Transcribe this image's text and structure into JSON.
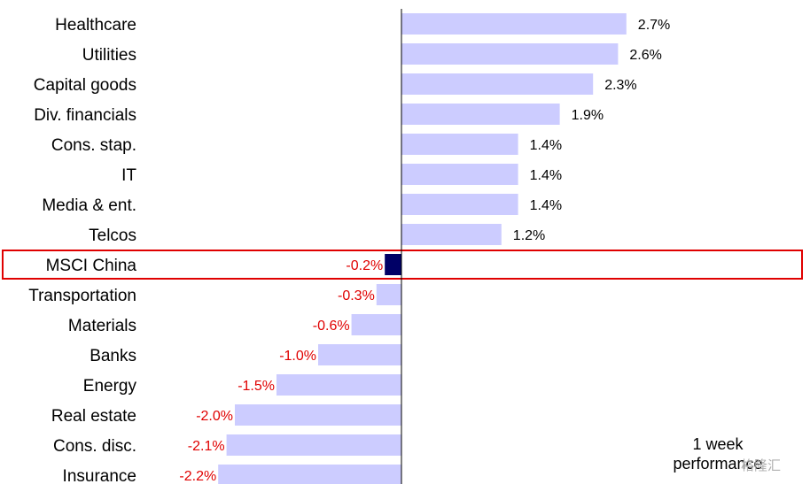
{
  "chart_data": {
    "type": "bar",
    "orientation": "horizontal",
    "categories": [
      "Healthcare",
      "Utilities",
      "Capital goods",
      "Div. financials",
      "Cons. stap.",
      "IT",
      "Media & ent.",
      "Telcos",
      "MSCI China",
      "Transportation",
      "Materials",
      "Banks",
      "Energy",
      "Real estate",
      "Cons. disc.",
      "Insurance"
    ],
    "values": [
      2.7,
      2.6,
      2.3,
      1.9,
      1.4,
      1.4,
      1.4,
      1.2,
      -0.2,
      -0.3,
      -0.6,
      -1.0,
      -1.5,
      -2.0,
      -2.1,
      -2.2
    ],
    "value_labels": [
      "2.7%",
      "2.6%",
      "2.3%",
      "1.9%",
      "1.4%",
      "1.4%",
      "1.4%",
      "1.2%",
      "-0.2%",
      "-0.3%",
      "-0.6%",
      "-1.0%",
      "-1.5%",
      "-2.0%",
      "-2.1%",
      "-2.2%"
    ],
    "highlight": "MSCI China",
    "legend_note": [
      "1 week",
      "performance"
    ],
    "colors": {
      "bar": "#ccccff",
      "highlight_bar": "#000066",
      "positive_label": "#000000",
      "negative_label": "#e00000",
      "highlight_box": "#e00000",
      "axis": "#000000"
    },
    "grid": false
  },
  "watermark": "格隆汇"
}
